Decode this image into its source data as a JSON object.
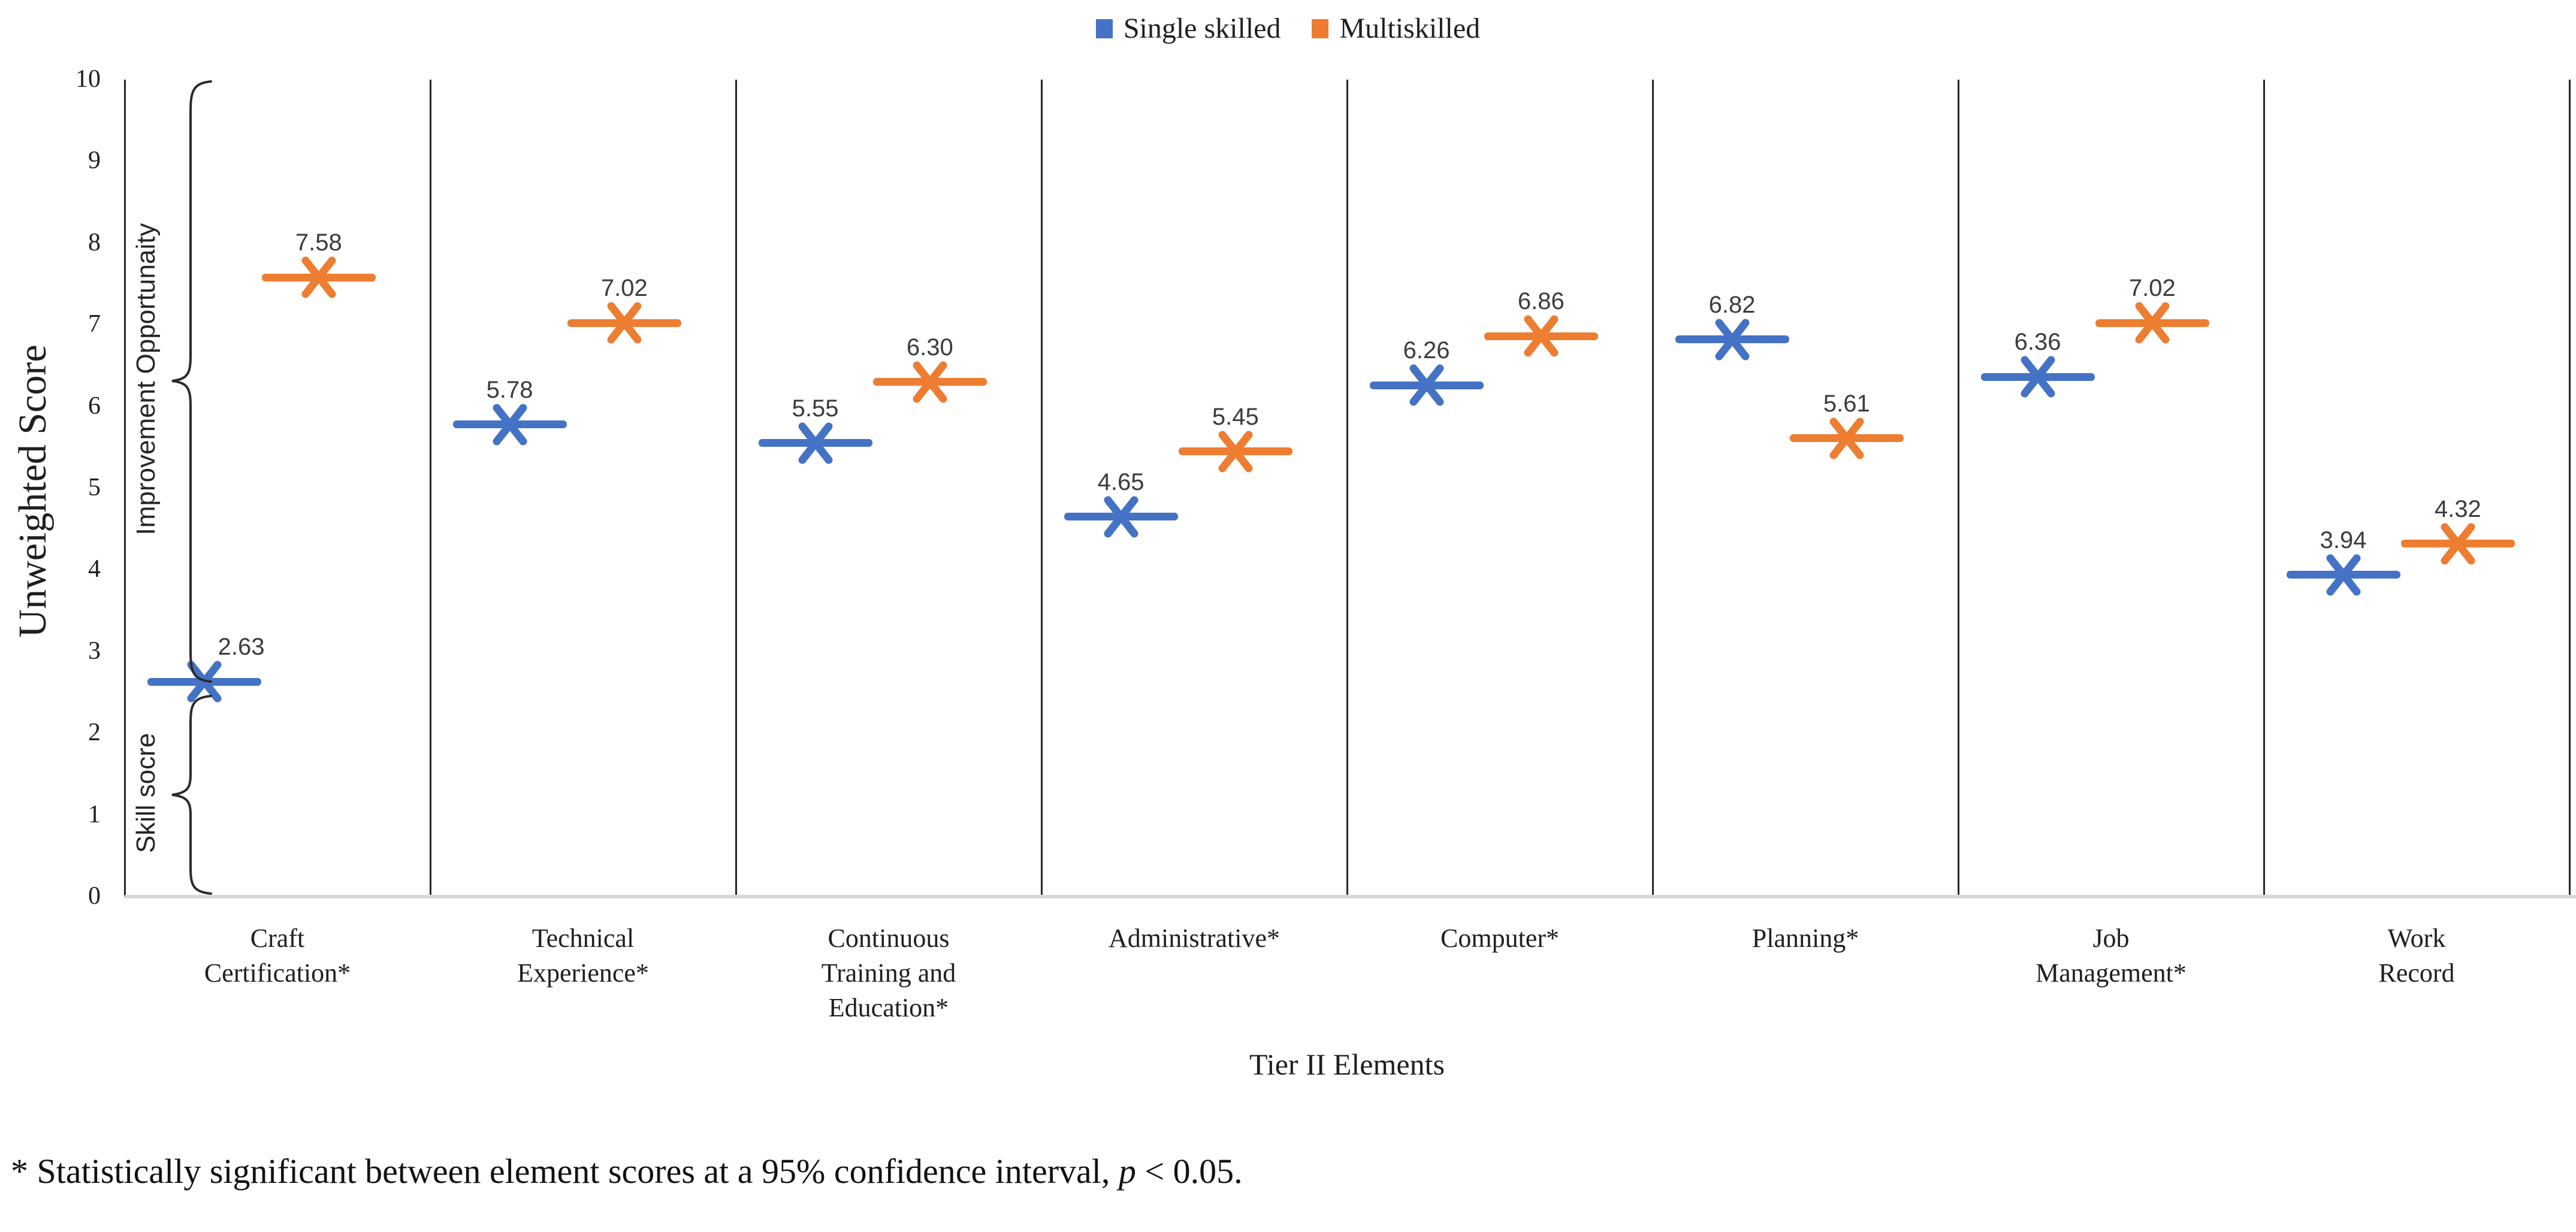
{
  "legend": {
    "items": [
      {
        "label": "Single skilled",
        "color": "#4472C4"
      },
      {
        "label": "Multiskilled",
        "color": "#ED7D31"
      }
    ]
  },
  "y_axis": {
    "title": "Unweighted Score",
    "ticks": [
      "0",
      "1",
      "2",
      "3",
      "4",
      "5",
      "6",
      "7",
      "8",
      "9",
      "10"
    ]
  },
  "x_axis": {
    "title": "Tier II Elements"
  },
  "brace_annotations": {
    "improvement_label": "Improvement Opportunaity",
    "skill_label": "Skill socre"
  },
  "footnote": {
    "prefix": "* Statistically significant between element scores at a 95% confidence interval, ",
    "p_symbol": "p",
    "suffix": " < 0.05."
  },
  "chart_data": {
    "type": "scatter",
    "marker": "x-with-horizontal-bar",
    "title": "",
    "xlabel": "Tier II Elements",
    "ylabel": "Unweighted Score",
    "ylim": [
      0,
      10
    ],
    "y_tick_step": 1,
    "grid": false,
    "panel_dividers": true,
    "legend_position": "top-center",
    "categories": [
      "Craft\nCertification*",
      "Technical\nExperience*",
      "Continuous\nTraining and\nEducation*",
      "Administrative*",
      "Computer*",
      "Planning*",
      "Job\nManagement*",
      "Work\nRecord"
    ],
    "series": [
      {
        "name": "Single skilled",
        "color": "#4472C4",
        "values": [
          2.63,
          5.78,
          5.55,
          4.65,
          6.26,
          6.82,
          6.36,
          3.94
        ],
        "labels": [
          "2.63",
          "5.78",
          "5.55",
          "4.65",
          "6.26",
          "6.82",
          "6.36",
          "3.94"
        ]
      },
      {
        "name": "Multiskilled",
        "color": "#ED7D31",
        "values": [
          7.58,
          7.02,
          6.3,
          5.45,
          6.86,
          5.61,
          7.02,
          4.32
        ],
        "labels": [
          "7.58",
          "7.02",
          "6.30",
          "5.45",
          "6.86",
          "5.61",
          "7.02",
          "4.32"
        ]
      }
    ],
    "annotations": [
      {
        "type": "brace",
        "label": "Improvement Opportunaity",
        "score_span": [
          2.63,
          10
        ]
      },
      {
        "type": "brace",
        "label": "Skill socre",
        "score_span": [
          0,
          2.5
        ]
      }
    ]
  }
}
